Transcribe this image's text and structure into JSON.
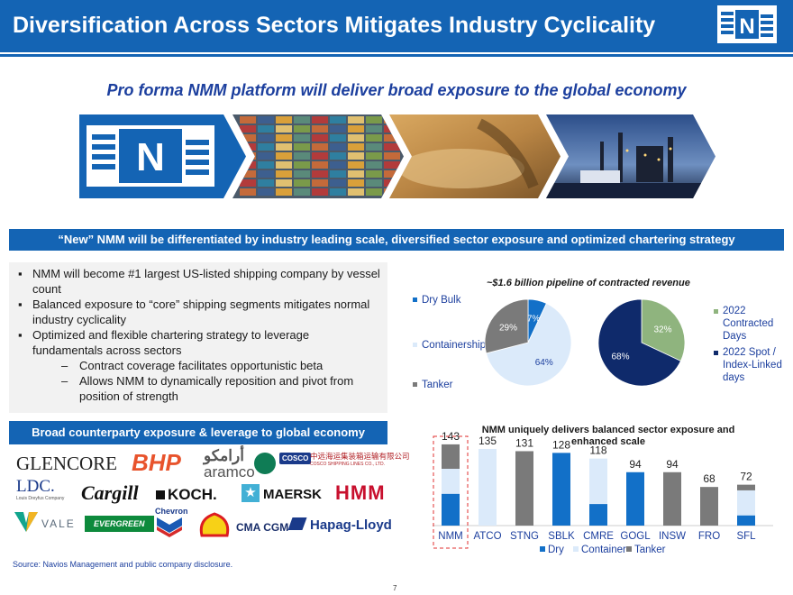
{
  "header": {
    "title": "Diversification Across Sectors Mitigates Industry Cyclicality",
    "logo_letter": "N"
  },
  "subtitle": "Pro forma NMM platform will deliver broad exposure to the global economy",
  "banner": "“New” NMM will be differentiated by industry leading scale, diversified sector exposure and optimized chartering strategy",
  "bullets": [
    "NMM will become #1 largest US-listed shipping company by vessel count",
    "Balanced exposure to “core” shipping segments mitigates normal industry cyclicality",
    "Optimized and flexible chartering strategy to leverage fundamentals across sectors"
  ],
  "sub_bullets": [
    "Contract coverage facilitates opportunistic beta",
    "Allows NMM to dynamically reposition and pivot from position of strength"
  ],
  "counterparty": {
    "title": "Broad counterparty exposure & leverage to global economy",
    "logos": [
      "GLENCORE",
      "BHP",
      "أرامكو",
      "aramco",
      "COSCO",
      "中远海运集装箱运输有限公司",
      "COSCO SHIPPING LINES CO., LTD.",
      "LDC.",
      "Louis Dreyfus Company",
      "Cargill",
      "KOCH.",
      "MAERSK",
      "HMM",
      "VALE",
      "EVERGREEN",
      "Chevron",
      "CMA CGM",
      "Hapag-Lloyd"
    ]
  },
  "source": "Source: Navios Management and public company disclosure.",
  "page_number": "7",
  "colors": {
    "brand_blue": "#1464b4",
    "dry": "#1270c8",
    "container": "#dbeafa",
    "tanker": "#7a7a7a",
    "contracted": "#8fb47e",
    "spot": "#0f2a6b"
  },
  "chart_data": [
    {
      "type": "pie",
      "title": "~$1.6 billion pipeline of contracted revenue",
      "labels": [
        "Dry Bulk",
        "Containership",
        "Tanker"
      ],
      "values": [
        7,
        64,
        29
      ],
      "value_labels": [
        "7%",
        "64%",
        "29%"
      ],
      "legend": "left"
    },
    {
      "type": "pie",
      "labels": [
        "2022 Contracted Days",
        "2022 Spot / Index-Linked days"
      ],
      "values": [
        32,
        68
      ],
      "value_labels": [
        "32%",
        "68%"
      ],
      "legend": "right"
    },
    {
      "type": "bar",
      "stacked": true,
      "title": "NMM uniquely delivers balanced sector exposure and enhanced scale",
      "categories": [
        "NMM",
        "ATCO",
        "STNG",
        "SBLK",
        "CMRE",
        "GOGL",
        "INSW",
        "FRO",
        "SFL"
      ],
      "totals": [
        143,
        135,
        131,
        128,
        118,
        94,
        94,
        68,
        72
      ],
      "series": [
        {
          "name": "Dry",
          "values": [
            56,
            0,
            0,
            128,
            38,
            94,
            0,
            0,
            18
          ]
        },
        {
          "name": "Container",
          "values": [
            44,
            135,
            0,
            0,
            80,
            0,
            0,
            0,
            44
          ]
        },
        {
          "name": "Tanker",
          "values": [
            43,
            0,
            131,
            0,
            0,
            0,
            94,
            68,
            10
          ]
        }
      ],
      "legend": "bottom",
      "highlight": "NMM"
    }
  ]
}
